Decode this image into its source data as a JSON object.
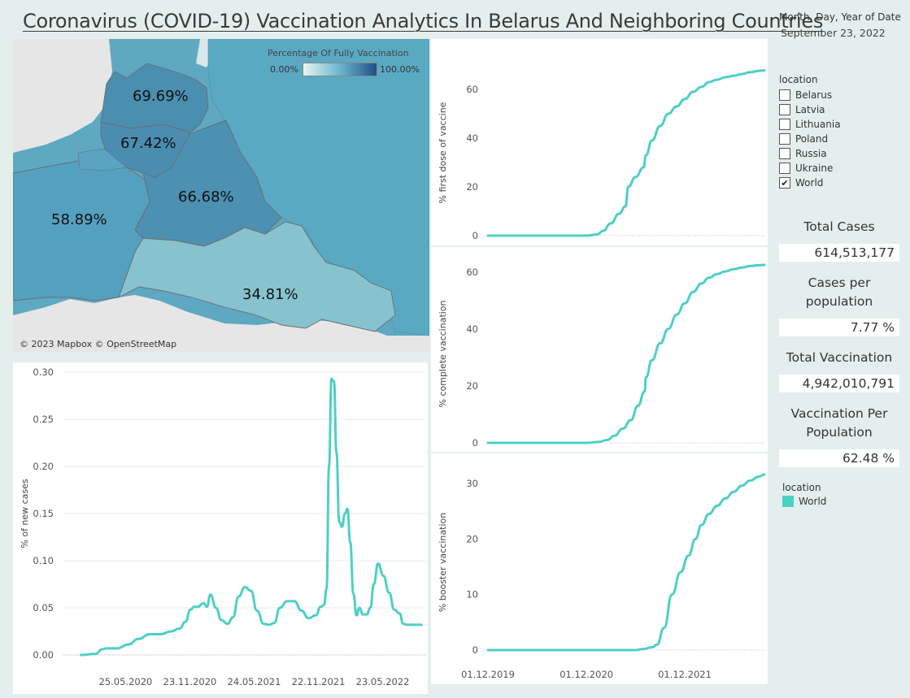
{
  "title": "Coronavirus (COVID-19) Vaccination Analytics In Belarus And Neighboring Countries",
  "date_filter": {
    "label": "Month, Day, Year of Date",
    "value": "September 23, 2022"
  },
  "map": {
    "legend_title": "Percentage Of Fully Vaccination",
    "legend_min": "0.00%",
    "legend_max": "100.00%",
    "credit": "© 2023 Mapbox © OpenStreetMap",
    "labels": {
      "latvia": "69.69%",
      "lithuania": "67.42%",
      "belarus": "66.68%",
      "poland": "58.89%",
      "ukraine": "34.81%"
    },
    "colors": {
      "sea": "#5fa8c2",
      "land": "#e6e6e6",
      "latvia": "#4a8eb0",
      "lithuania": "#4a8db0",
      "belarus": "#4c90b2",
      "poland": "#55a0bf",
      "ukraine": "#87c3cf",
      "russia": "#5aa9c3"
    }
  },
  "location_filter": {
    "title": "location",
    "items": [
      {
        "name": "Belarus",
        "checked": ""
      },
      {
        "name": "Latvia",
        "checked": ""
      },
      {
        "name": "Lithuania",
        "checked": ""
      },
      {
        "name": "Poland",
        "checked": ""
      },
      {
        "name": "Russia",
        "checked": ""
      },
      {
        "name": "Ukraine",
        "checked": ""
      },
      {
        "name": "World",
        "checked": "✔"
      }
    ]
  },
  "kpis": [
    {
      "label": "Total Cases",
      "value": "614,513,177"
    },
    {
      "label": "Cases per population",
      "value": "7.77 %"
    },
    {
      "label": "Total Vaccination",
      "value": "4,942,010,791"
    },
    {
      "label": "Vaccination Per Population",
      "value": "62.48 %"
    }
  ],
  "series_legend": {
    "title": "location",
    "item": "World",
    "color": "#4dd0c4"
  },
  "chart_data": [
    {
      "id": "new_cases",
      "type": "line",
      "ylabel": "% of new cases",
      "ylim": [
        0,
        0.3
      ],
      "yticks": [
        "0.00",
        "0.05",
        "0.10",
        "0.15",
        "0.20",
        "0.25",
        "0.30"
      ],
      "xlim": [
        "2019-12-01",
        "2022-09-23"
      ],
      "xticks": [
        "25.05.2020",
        "23.11.2020",
        "24.05.2021",
        "22.11.2021",
        "23.05.2022"
      ],
      "grid": true,
      "color": "#4dd0c4",
      "series": [
        {
          "name": "World",
          "x": [
            "2020-01-20",
            "2020-03-01",
            "2020-03-20",
            "2020-04-01",
            "2020-05-01",
            "2020-06-01",
            "2020-07-01",
            "2020-08-01",
            "2020-09-01",
            "2020-10-01",
            "2020-10-25",
            "2020-11-10",
            "2020-11-25",
            "2020-12-05",
            "2020-12-15",
            "2021-01-01",
            "2021-01-10",
            "2021-01-20",
            "2021-02-05",
            "2021-02-20",
            "2021-03-10",
            "2021-03-25",
            "2021-04-10",
            "2021-04-28",
            "2021-05-15",
            "2021-06-01",
            "2021-06-20",
            "2021-07-05",
            "2021-07-20",
            "2021-08-05",
            "2021-08-25",
            "2021-09-15",
            "2021-10-05",
            "2021-10-25",
            "2021-11-15",
            "2021-11-28",
            "2021-12-08",
            "2021-12-15",
            "2021-12-22",
            "2021-12-29",
            "2022-01-05",
            "2022-01-12",
            "2022-01-20",
            "2022-01-28",
            "2022-02-05",
            "2022-02-12",
            "2022-02-20",
            "2022-03-01",
            "2022-03-10",
            "2022-03-18",
            "2022-03-28",
            "2022-04-08",
            "2022-04-18",
            "2022-04-28",
            "2022-05-10",
            "2022-05-25",
            "2022-06-10",
            "2022-06-25",
            "2022-07-10",
            "2022-07-20",
            "2022-08-01",
            "2022-08-15",
            "2022-08-28",
            "2022-09-10"
          ],
          "values": [
            0.0,
            0.001,
            0.006,
            0.007,
            0.007,
            0.011,
            0.017,
            0.022,
            0.022,
            0.025,
            0.028,
            0.035,
            0.048,
            0.051,
            0.051,
            0.055,
            0.051,
            0.064,
            0.05,
            0.037,
            0.033,
            0.04,
            0.062,
            0.072,
            0.068,
            0.047,
            0.033,
            0.032,
            0.034,
            0.05,
            0.057,
            0.057,
            0.047,
            0.039,
            0.042,
            0.051,
            0.053,
            0.07,
            0.2,
            0.293,
            0.29,
            0.215,
            0.141,
            0.136,
            0.15,
            0.155,
            0.12,
            0.065,
            0.042,
            0.05,
            0.043,
            0.043,
            0.05,
            0.075,
            0.097,
            0.084,
            0.066,
            0.048,
            0.044,
            0.033,
            0.032,
            0.032,
            0.032,
            0.032
          ]
        }
      ]
    },
    {
      "id": "first_dose",
      "type": "line",
      "ylabel": "% first dose of vaccine",
      "ylim": [
        0,
        68
      ],
      "yticks": [
        "0",
        "20",
        "40",
        "60"
      ],
      "color": "#4dd0c4",
      "series": [
        {
          "name": "World",
          "x": [
            "2019-12-01",
            "2020-12-01",
            "2021-01-10",
            "2021-02-01",
            "2021-03-01",
            "2021-04-01",
            "2021-04-25",
            "2021-05-05",
            "2021-06-01",
            "2021-07-01",
            "2021-07-10",
            "2021-08-01",
            "2021-09-01",
            "2021-10-01",
            "2021-11-01",
            "2021-12-01",
            "2022-01-01",
            "2022-02-01",
            "2022-03-01",
            "2022-04-01",
            "2022-05-01",
            "2022-06-01",
            "2022-07-01",
            "2022-08-01",
            "2022-09-01",
            "2022-09-23"
          ],
          "values": [
            0,
            0,
            0.5,
            2,
            5,
            9,
            12,
            20,
            24,
            28,
            33,
            39,
            45,
            50,
            53,
            56,
            59,
            61,
            63,
            64,
            65,
            65.6,
            66.3,
            67,
            67.6,
            67.8
          ]
        }
      ]
    },
    {
      "id": "complete",
      "type": "line",
      "ylabel": "% complete vaccination",
      "ylim": [
        0,
        62.5
      ],
      "yticks": [
        "0",
        "20",
        "40",
        "60"
      ],
      "color": "#4dd0c4",
      "series": [
        {
          "name": "World",
          "x": [
            "2019-12-01",
            "2020-12-01",
            "2021-01-15",
            "2021-02-15",
            "2021-03-15",
            "2021-04-15",
            "2021-05-15",
            "2021-06-10",
            "2021-07-05",
            "2021-07-10",
            "2021-08-01",
            "2021-09-01",
            "2021-10-01",
            "2021-11-01",
            "2021-12-01",
            "2022-01-01",
            "2022-02-01",
            "2022-03-01",
            "2022-04-01",
            "2022-05-01",
            "2022-06-01",
            "2022-07-01",
            "2022-08-01",
            "2022-09-01",
            "2022-09-23"
          ],
          "values": [
            0,
            0,
            0.3,
            1,
            2.5,
            5,
            8,
            13,
            18,
            23,
            29,
            35,
            40,
            45,
            49,
            53,
            56,
            58,
            59.3,
            60.2,
            61,
            61.6,
            62.1,
            62.4,
            62.5
          ]
        }
      ]
    },
    {
      "id": "booster",
      "type": "line",
      "ylabel": "% booster vaccination",
      "ylim": [
        0,
        31.6
      ],
      "yticks": [
        "0",
        "10",
        "20",
        "30"
      ],
      "xticks": [
        "01.12.2019",
        "01.12.2020",
        "01.12.2021"
      ],
      "color": "#4dd0c4",
      "series": [
        {
          "name": "World",
          "x": [
            "2019-12-01",
            "2021-06-01",
            "2021-07-01",
            "2021-08-01",
            "2021-08-20",
            "2021-09-15",
            "2021-10-15",
            "2021-11-15",
            "2021-12-15",
            "2022-01-10",
            "2022-02-01",
            "2022-03-01",
            "2022-04-01",
            "2022-05-01",
            "2022-06-01",
            "2022-07-01",
            "2022-08-01",
            "2022-09-01",
            "2022-09-23"
          ],
          "values": [
            0,
            0,
            0.2,
            0.5,
            1,
            4,
            10,
            14,
            17,
            20,
            22.5,
            24.5,
            26,
            27.3,
            28.5,
            29.6,
            30.5,
            31.2,
            31.6
          ]
        }
      ]
    }
  ]
}
